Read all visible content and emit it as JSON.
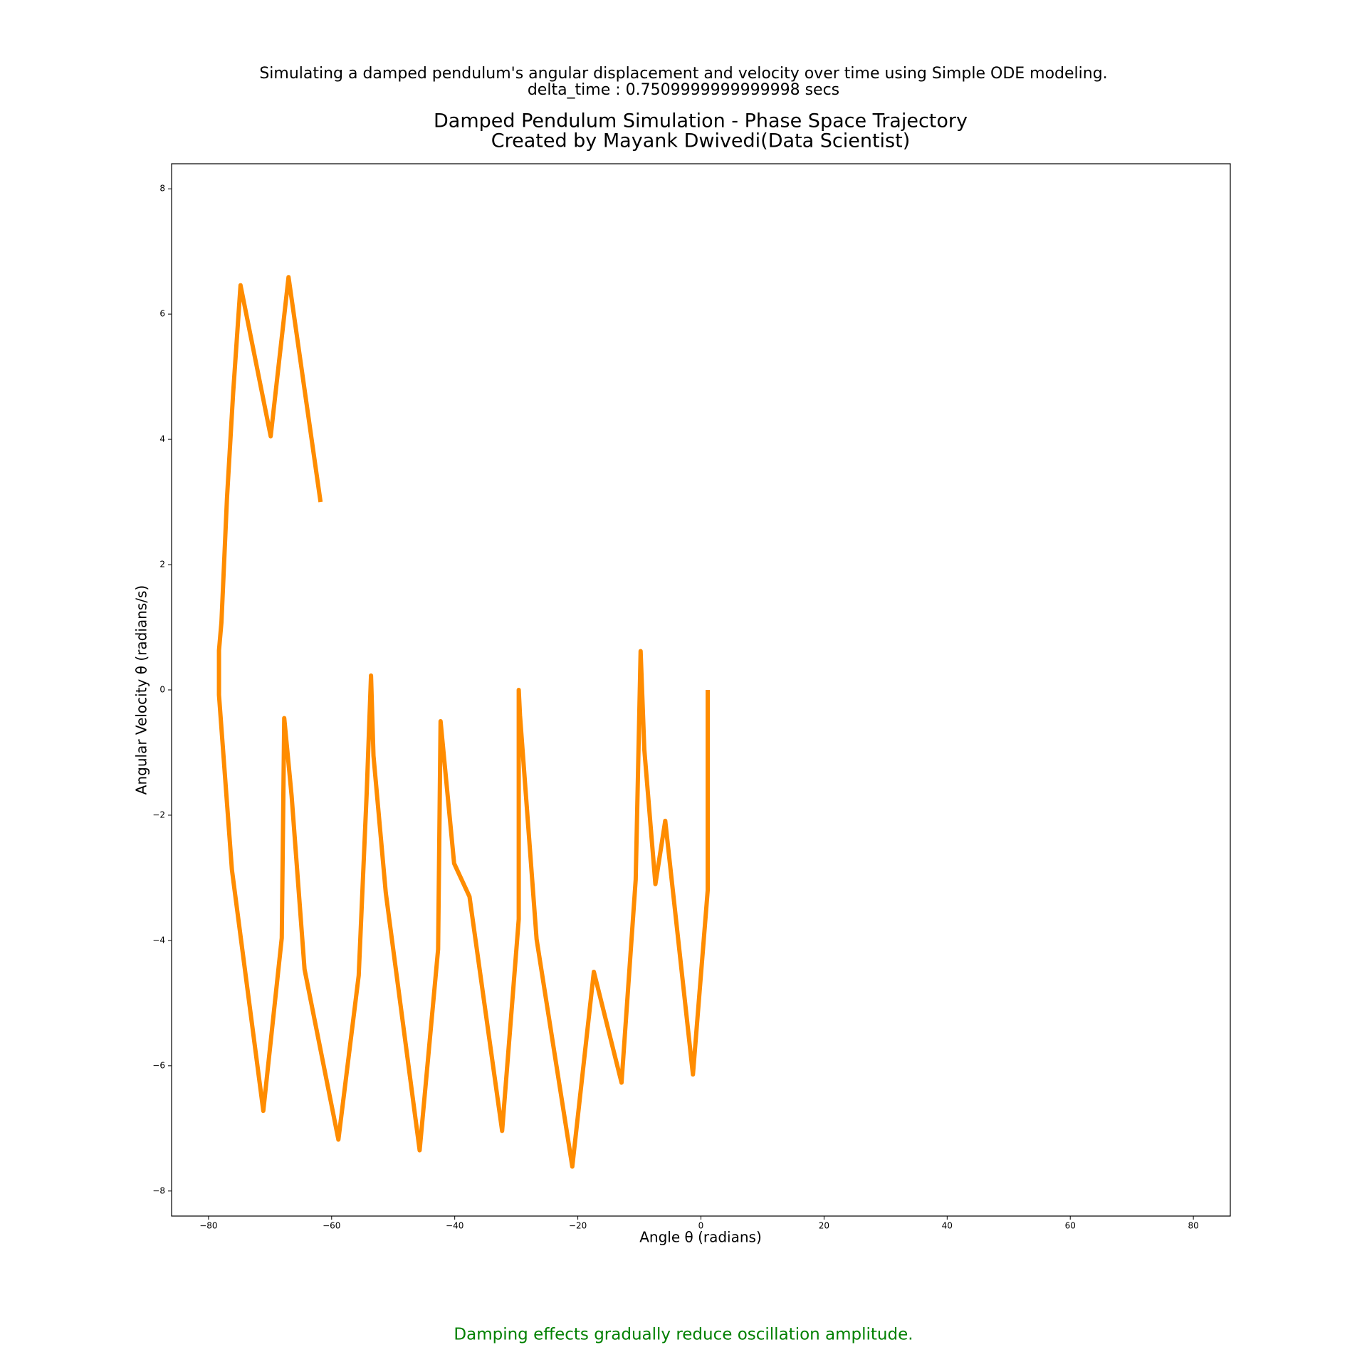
{
  "chart_data": {
    "type": "line",
    "suptitle": [
      "Simulating a damped pendulum's angular displacement and velocity over time using Simple ODE modeling.",
      "delta_time : 0.7509999999999998 secs"
    ],
    "title": [
      "Damped Pendulum Simulation - Phase Space Trajectory",
      "Created by Mayank Dwivedi(Data Scientist)"
    ],
    "xlabel": "Angle θ (radians)",
    "ylabel": "Angular Velocity θ (radians/s)",
    "annotation": "Damping effects gradually reduce oscillation amplitude.",
    "xlim": [
      -86,
      86
    ],
    "ylim": [
      -8.4,
      8.4
    ],
    "xticks": [
      {
        "value": -80,
        "label": "−80"
      },
      {
        "value": -60,
        "label": "−60"
      },
      {
        "value": -40,
        "label": "−40"
      },
      {
        "value": -20,
        "label": "−20"
      },
      0,
      20,
      40,
      60,
      80
    ],
    "yticks": [
      {
        "value": -8,
        "label": "−8"
      },
      {
        "value": -6,
        "label": "−6"
      },
      {
        "value": -4,
        "label": "−4"
      },
      {
        "value": -2,
        "label": "−2"
      },
      0,
      2,
      4,
      6,
      8
    ],
    "grid": false,
    "series": [
      {
        "color": "#ff8c00",
        "x": [
          1.1,
          1.1,
          -1.3,
          -5.8,
          -7.4,
          -9.2,
          -9.8,
          -10.1,
          -10.6,
          -12.9,
          -17.4,
          -20.9,
          -26.7,
          -29.4,
          -29.6,
          -29.6,
          -32.3,
          -37.6,
          -40.1,
          -42.3,
          -42.7,
          -45.7,
          -51.2,
          -53.2,
          -53.6,
          -54.3,
          -55.6,
          -58.9,
          -64.4,
          -66.5,
          -67.7,
          -68.1,
          -71.1,
          -76.2,
          -78.3,
          -78.3,
          -77.9,
          -77.0,
          -76.0,
          -74.8,
          -69.9,
          -67.0,
          -61.8
        ],
        "values": [
          0,
          -3.2,
          -6.14,
          -2.09,
          -3.1,
          -0.95,
          0.62,
          -0.76,
          -3.03,
          -6.27,
          -4.5,
          -7.61,
          -3.98,
          -0.4,
          0,
          -3.66,
          -7.04,
          -3.3,
          -2.77,
          -0.5,
          -4.14,
          -7.35,
          -3.24,
          -1.05,
          0.23,
          -1.64,
          -4.56,
          -7.18,
          -4.46,
          -1.69,
          -0.45,
          -3.96,
          -6.72,
          -2.87,
          -0.08,
          0.63,
          1.08,
          3.06,
          4.74,
          6.46,
          4.05,
          6.59,
          3.0
        ]
      }
    ]
  }
}
